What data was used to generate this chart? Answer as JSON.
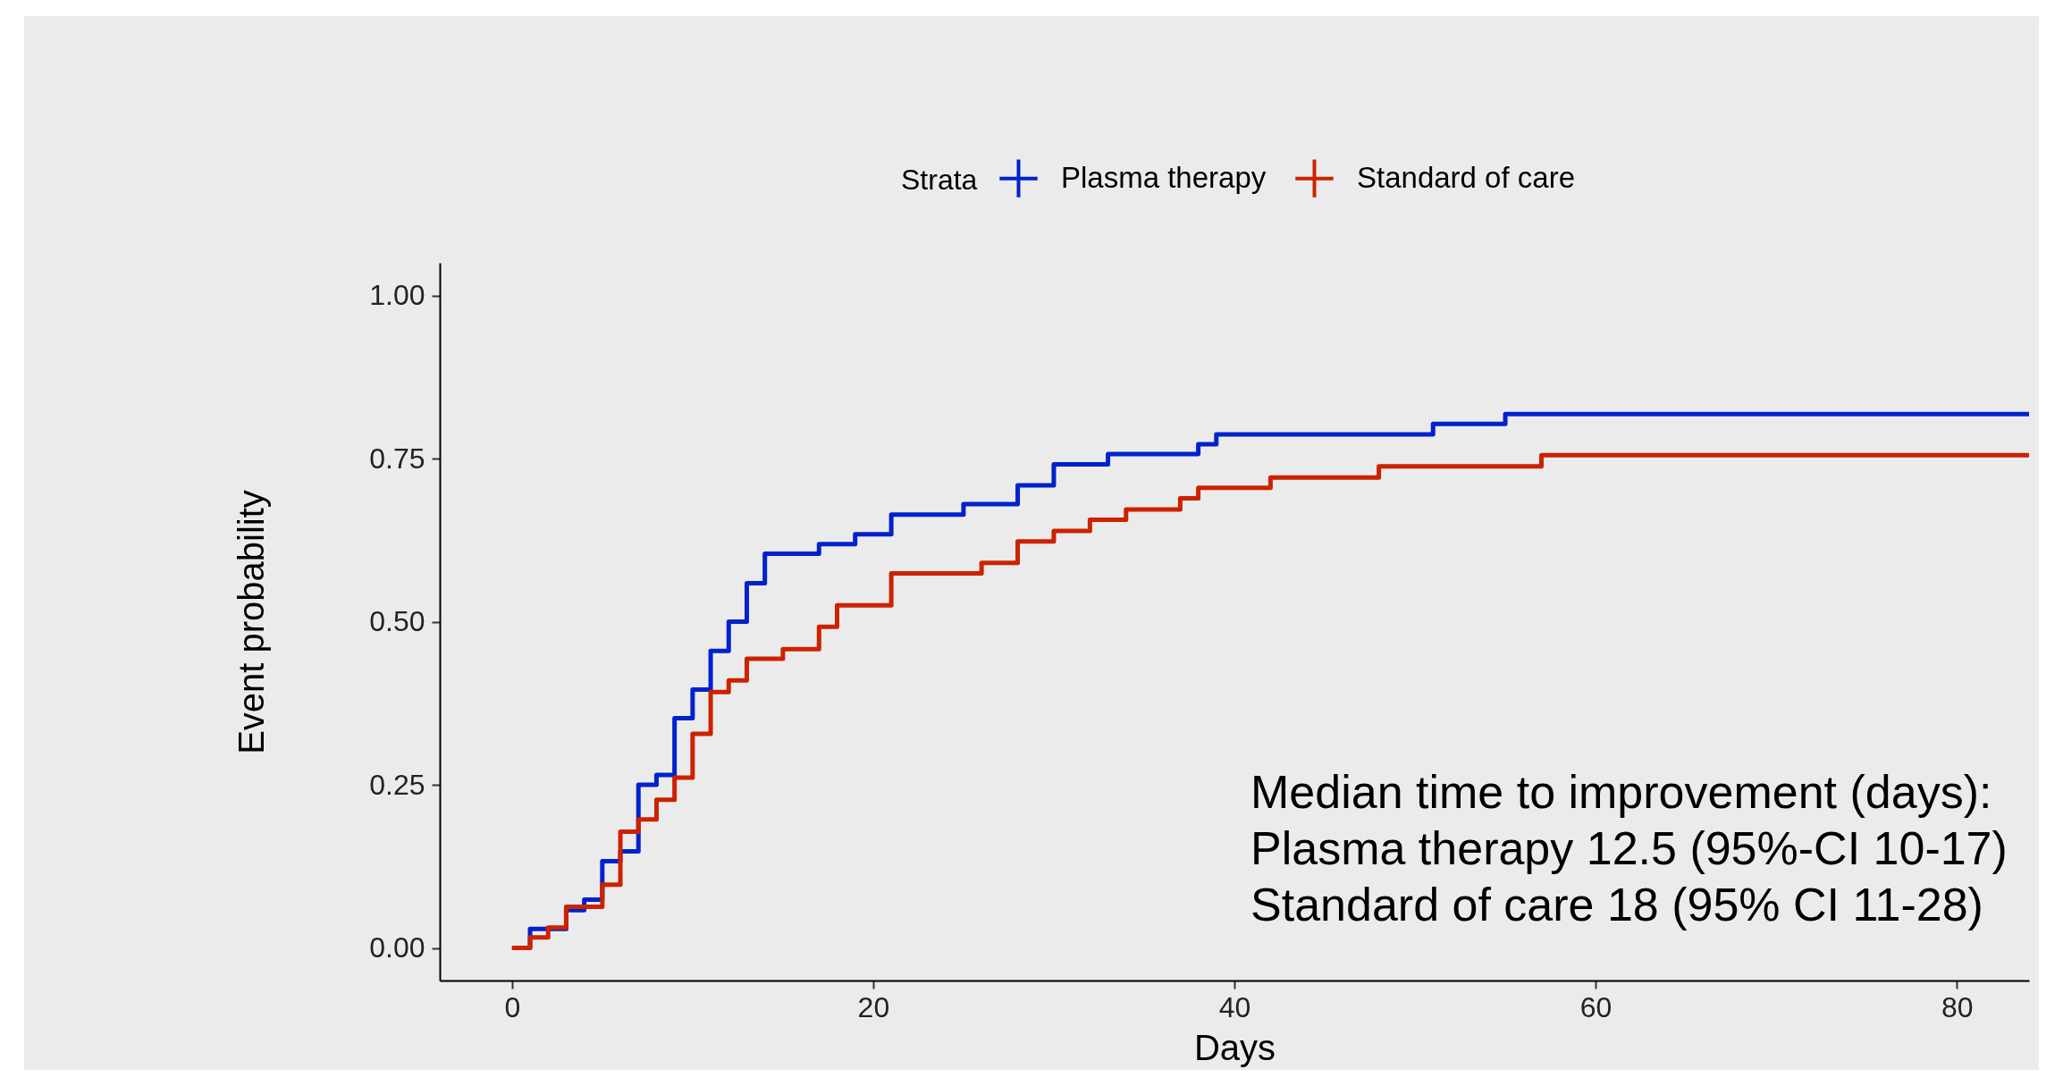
{
  "chart_data": {
    "type": "step",
    "legend_title": "Strata",
    "xlabel": "Days",
    "ylabel": "Event probability",
    "xlim": [
      -4,
      84
    ],
    "xticks": [
      0,
      20,
      40,
      60,
      80
    ],
    "ylim": [
      -0.05,
      1.05
    ],
    "yticks": [
      {
        "value": 0,
        "label": "0.00"
      },
      {
        "value": 0.25,
        "label": "0.25"
      },
      {
        "value": 0.5,
        "label": "0.50"
      },
      {
        "value": 0.75,
        "label": "0.75"
      },
      {
        "value": 1,
        "label": "1.00"
      }
    ],
    "grid": false,
    "legend": "top",
    "series": [
      {
        "name": "Plasma therapy",
        "color": "#0022cc",
        "x": [
          0,
          1,
          3,
          4,
          5,
          6,
          7,
          8,
          9,
          10,
          11,
          12,
          13,
          14,
          17,
          19,
          21,
          25,
          28,
          30,
          33,
          38,
          39,
          51,
          55,
          84
        ],
        "values": [
          0,
          0.029,
          0.058,
          0.074,
          0.133,
          0.148,
          0.25,
          0.265,
          0.352,
          0.396,
          0.455,
          0.5,
          0.559,
          0.604,
          0.619,
          0.634,
          0.664,
          0.68,
          0.709,
          0.741,
          0.757,
          0.772,
          0.787,
          0.803,
          0.818,
          0.818
        ]
      },
      {
        "name": "Standard of care",
        "color": "#cc2200",
        "x": [
          0,
          1,
          2,
          3,
          5,
          6,
          7,
          8,
          9,
          10,
          11,
          12,
          13,
          15,
          17,
          18,
          21,
          26,
          28,
          30,
          32,
          34,
          37,
          38,
          42,
          48,
          57,
          84
        ],
        "values": [
          0,
          0.016,
          0.031,
          0.063,
          0.097,
          0.178,
          0.197,
          0.227,
          0.261,
          0.328,
          0.392,
          0.41,
          0.443,
          0.458,
          0.492,
          0.525,
          0.574,
          0.59,
          0.623,
          0.639,
          0.656,
          0.672,
          0.689,
          0.705,
          0.721,
          0.738,
          0.755,
          0.755
        ]
      }
    ],
    "annotations": [
      "Median time to improvement (days):",
      "Plasma therapy 12.5 (95%-CI 10-17)",
      "Standard of care 18 (95% CI 11-28)"
    ]
  }
}
